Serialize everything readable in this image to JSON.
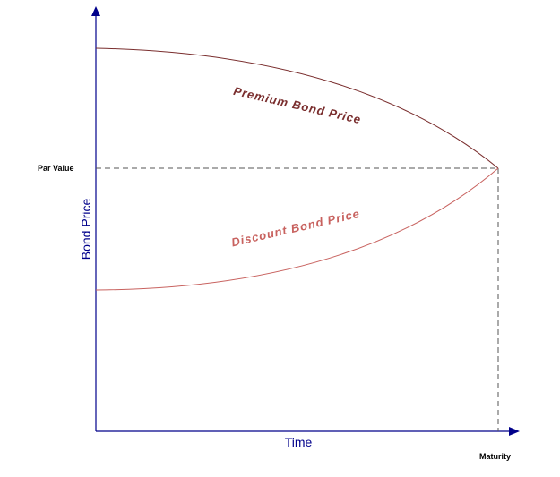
{
  "labels": {
    "y_axis": "Bond Price",
    "x_axis": "Time",
    "par_value": "Par Value",
    "maturity": "Maturity",
    "premium": "Premium Bond Price",
    "discount": "Discount Bond Price"
  },
  "colors": {
    "axis": "#00008b",
    "premium": "#7a2e2e",
    "discount": "#c8625f",
    "guide": "#555555",
    "text": "#000000"
  }
}
